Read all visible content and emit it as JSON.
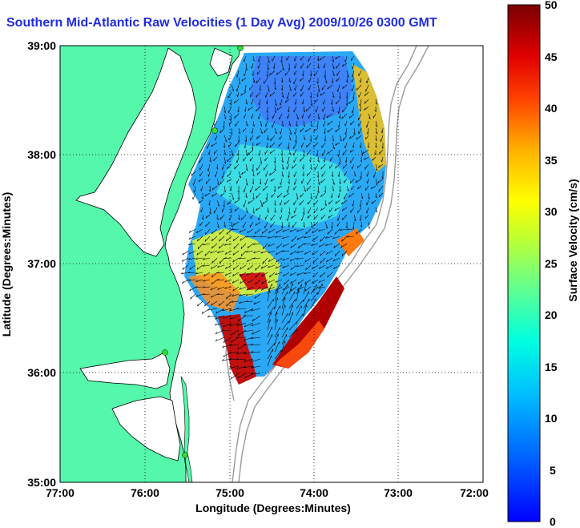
{
  "title": "Southern Mid-Atlantic Raw Velocities (1 Day Avg) 2009/10/26 0300 GMT",
  "axes": {
    "xlabel": "Longitude (Degrees:Minutes)",
    "ylabel": "Latitude (Degrees:Minutes)",
    "xticks": [
      "77:00",
      "76:00",
      "75:00",
      "74:00",
      "73:00",
      "72:00"
    ],
    "yticks": [
      "39:00",
      "38:00",
      "37:00",
      "36:00",
      "35:00"
    ]
  },
  "colorbar": {
    "label": "Surface Velocity (cm/s)",
    "ticks": [
      "50",
      "45",
      "40",
      "35",
      "30",
      "25",
      "20",
      "15",
      "10",
      "5",
      "0"
    ],
    "min": 0,
    "max": 50
  },
  "colors": {
    "land": "#55f7aa",
    "title": "#1f2ce0",
    "ocean": "#ffffff",
    "coastline": "#000000",
    "isobath": "#9a9a9a",
    "station": "#33dd33"
  }
}
